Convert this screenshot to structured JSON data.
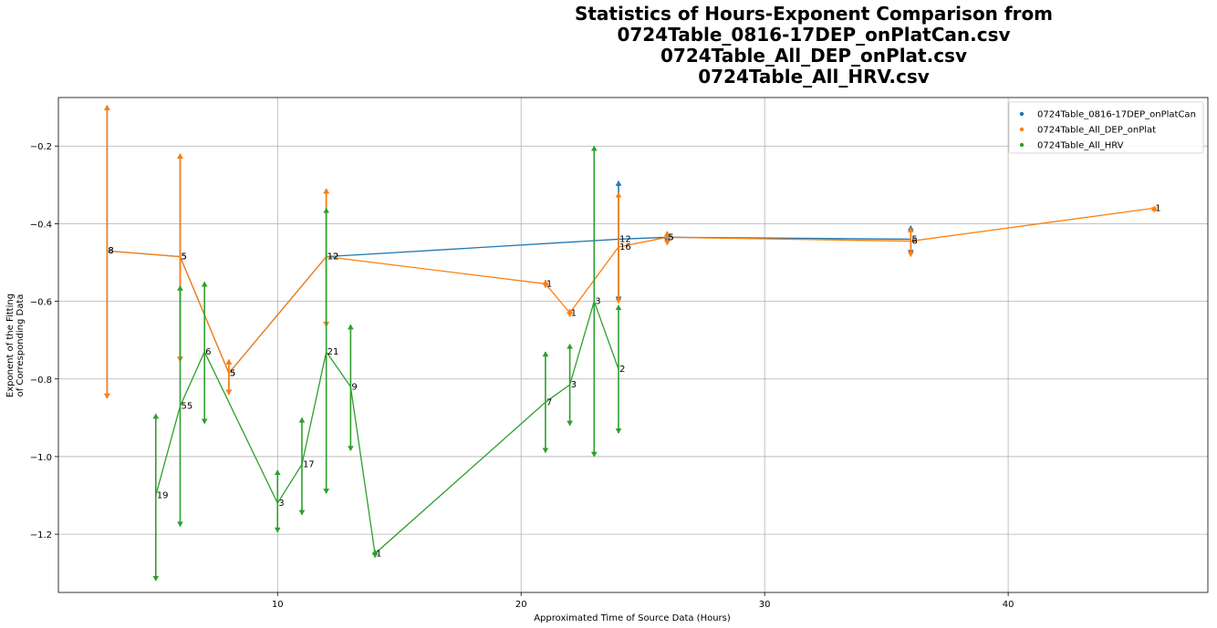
{
  "chart_data": {
    "type": "line",
    "title_lines": [
      "Statistics of Hours-Exponent Comparison from",
      "0724Table_0816-17DEP_onPlatCan.csv",
      "0724Table_All_DEP_onPlat.csv",
      "0724Table_All_HRV.csv"
    ],
    "xlabel": "Approximated Time of Source Data (Hours)",
    "ylabel_lines": [
      "Exponent of the Fitting",
      "of Corresponding Data"
    ],
    "xlim": [
      1.0,
      48.2
    ],
    "ylim": [
      -1.35,
      -0.075
    ],
    "xticks": [
      10,
      20,
      30,
      40
    ],
    "xtick_labels": [
      "10",
      "20",
      "30",
      "40"
    ],
    "yticks": [
      -0.2,
      -0.4,
      -0.6,
      -0.8,
      -1.0,
      -1.2
    ],
    "ytick_labels": [
      "−0.2",
      "−0.4",
      "−0.6",
      "−0.8",
      "−1.0",
      "−1.2"
    ],
    "grid": true,
    "legend_position": "top-right",
    "series": [
      {
        "name": "0724Table_0816-17DEP_onPlatCan",
        "color": "#1f77b4",
        "points": [
          {
            "x": 3,
            "y": -0.47,
            "low": -0.85,
            "high": -0.095,
            "label": "8"
          },
          {
            "x": 6,
            "y": -0.485,
            "low": -0.755,
            "high": -0.22,
            "label": "5"
          },
          {
            "x": 8,
            "y": -0.785,
            "low": -0.84,
            "high": -0.75,
            "label": "5"
          },
          {
            "x": 12,
            "y": -0.485,
            "low": -0.665,
            "high": -0.31,
            "label": "12"
          },
          {
            "x": 24,
            "y": -0.44,
            "low": -0.6,
            "high": -0.29,
            "label": "12"
          },
          {
            "x": 26,
            "y": -0.435,
            "low": -0.45,
            "high": -0.42,
            "label": "5"
          },
          {
            "x": 36,
            "y": -0.44,
            "low": -0.48,
            "high": -0.405,
            "label": "5"
          }
        ]
      },
      {
        "name": "0724Table_All_DEP_onPlat",
        "color": "#ff7f0e",
        "points": [
          {
            "x": 3,
            "y": -0.47,
            "low": -0.85,
            "high": -0.095,
            "label": "8"
          },
          {
            "x": 6,
            "y": -0.485,
            "low": -0.755,
            "high": -0.22,
            "label": "5"
          },
          {
            "x": 8,
            "y": -0.785,
            "low": -0.84,
            "high": -0.75,
            "label": "5"
          },
          {
            "x": 12,
            "y": -0.485,
            "low": -0.665,
            "high": -0.31,
            "label": "12"
          },
          {
            "x": 21,
            "y": -0.555,
            "low": -0.565,
            "high": -0.545,
            "label": "1"
          },
          {
            "x": 22,
            "y": -0.63,
            "low": -0.64,
            "high": -0.62,
            "label": "1"
          },
          {
            "x": 24,
            "y": -0.46,
            "low": -0.605,
            "high": -0.32,
            "label": "16"
          },
          {
            "x": 26,
            "y": -0.435,
            "low": -0.455,
            "high": -0.42,
            "label": "5"
          },
          {
            "x": 36,
            "y": -0.445,
            "low": -0.485,
            "high": -0.41,
            "label": "6"
          },
          {
            "x": 46,
            "y": -0.36,
            "low": -0.37,
            "high": -0.355,
            "label": "1"
          }
        ]
      },
      {
        "name": "0724Table_All_HRV",
        "color": "#2ca02c",
        "points": [
          {
            "x": 5,
            "y": -1.1,
            "low": -1.32,
            "high": -0.89,
            "label": "19"
          },
          {
            "x": 6,
            "y": -0.87,
            "low": -1.18,
            "high": -0.56,
            "label": "55"
          },
          {
            "x": 7,
            "y": -0.73,
            "low": -0.915,
            "high": -0.55,
            "label": "6"
          },
          {
            "x": 10,
            "y": -1.12,
            "low": -1.195,
            "high": -1.035,
            "label": "3"
          },
          {
            "x": 11,
            "y": -1.02,
            "low": -1.15,
            "high": -0.9,
            "label": "17"
          },
          {
            "x": 12,
            "y": -0.73,
            "low": -1.095,
            "high": -0.36,
            "label": "21"
          },
          {
            "x": 13,
            "y": -0.82,
            "low": -0.985,
            "high": -0.66,
            "label": "9"
          },
          {
            "x": 14,
            "y": -1.25,
            "low": -1.26,
            "high": -1.24,
            "label": "1"
          },
          {
            "x": 21,
            "y": -0.86,
            "low": -0.99,
            "high": -0.73,
            "label": "7"
          },
          {
            "x": 22,
            "y": -0.815,
            "low": -0.92,
            "high": -0.71,
            "label": "3"
          },
          {
            "x": 23,
            "y": -0.6,
            "low": -1.0,
            "high": -0.2,
            "label": "3"
          },
          {
            "x": 24,
            "y": -0.775,
            "low": -0.94,
            "high": -0.61,
            "label": "2"
          }
        ]
      }
    ]
  }
}
